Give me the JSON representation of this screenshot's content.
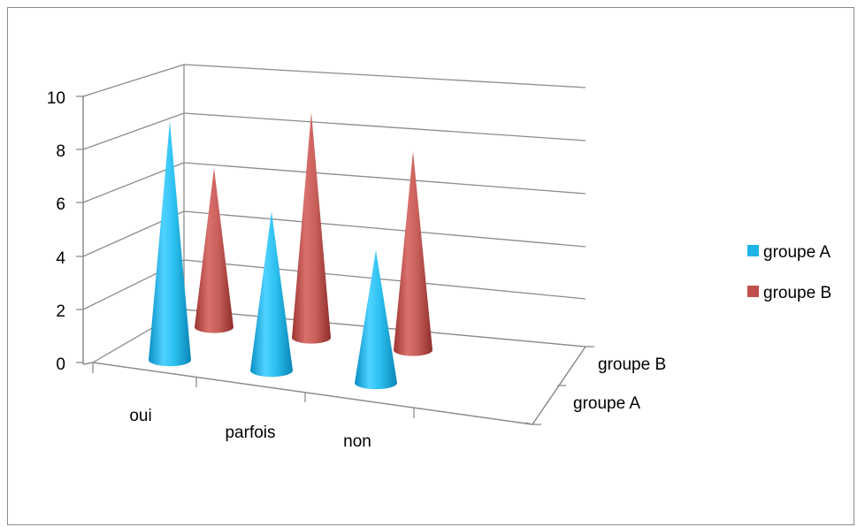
{
  "chart_data": {
    "type": "bar",
    "shape": "cone",
    "three_d": true,
    "categories": [
      "oui",
      "parfois",
      "non"
    ],
    "depth_labels": [
      "groupe B",
      "groupe A"
    ],
    "series": [
      {
        "name": "groupe A",
        "values": [
          9,
          6,
          5
        ],
        "color": "#1fb4e6"
      },
      {
        "name": "groupe B",
        "values": [
          6,
          8.5,
          7.5
        ],
        "color": "#c0504d"
      }
    ],
    "yticks": [
      "0",
      "2",
      "4",
      "6",
      "8",
      "10"
    ],
    "ylim": [
      0,
      10
    ],
    "grid": true,
    "legend": "right"
  }
}
